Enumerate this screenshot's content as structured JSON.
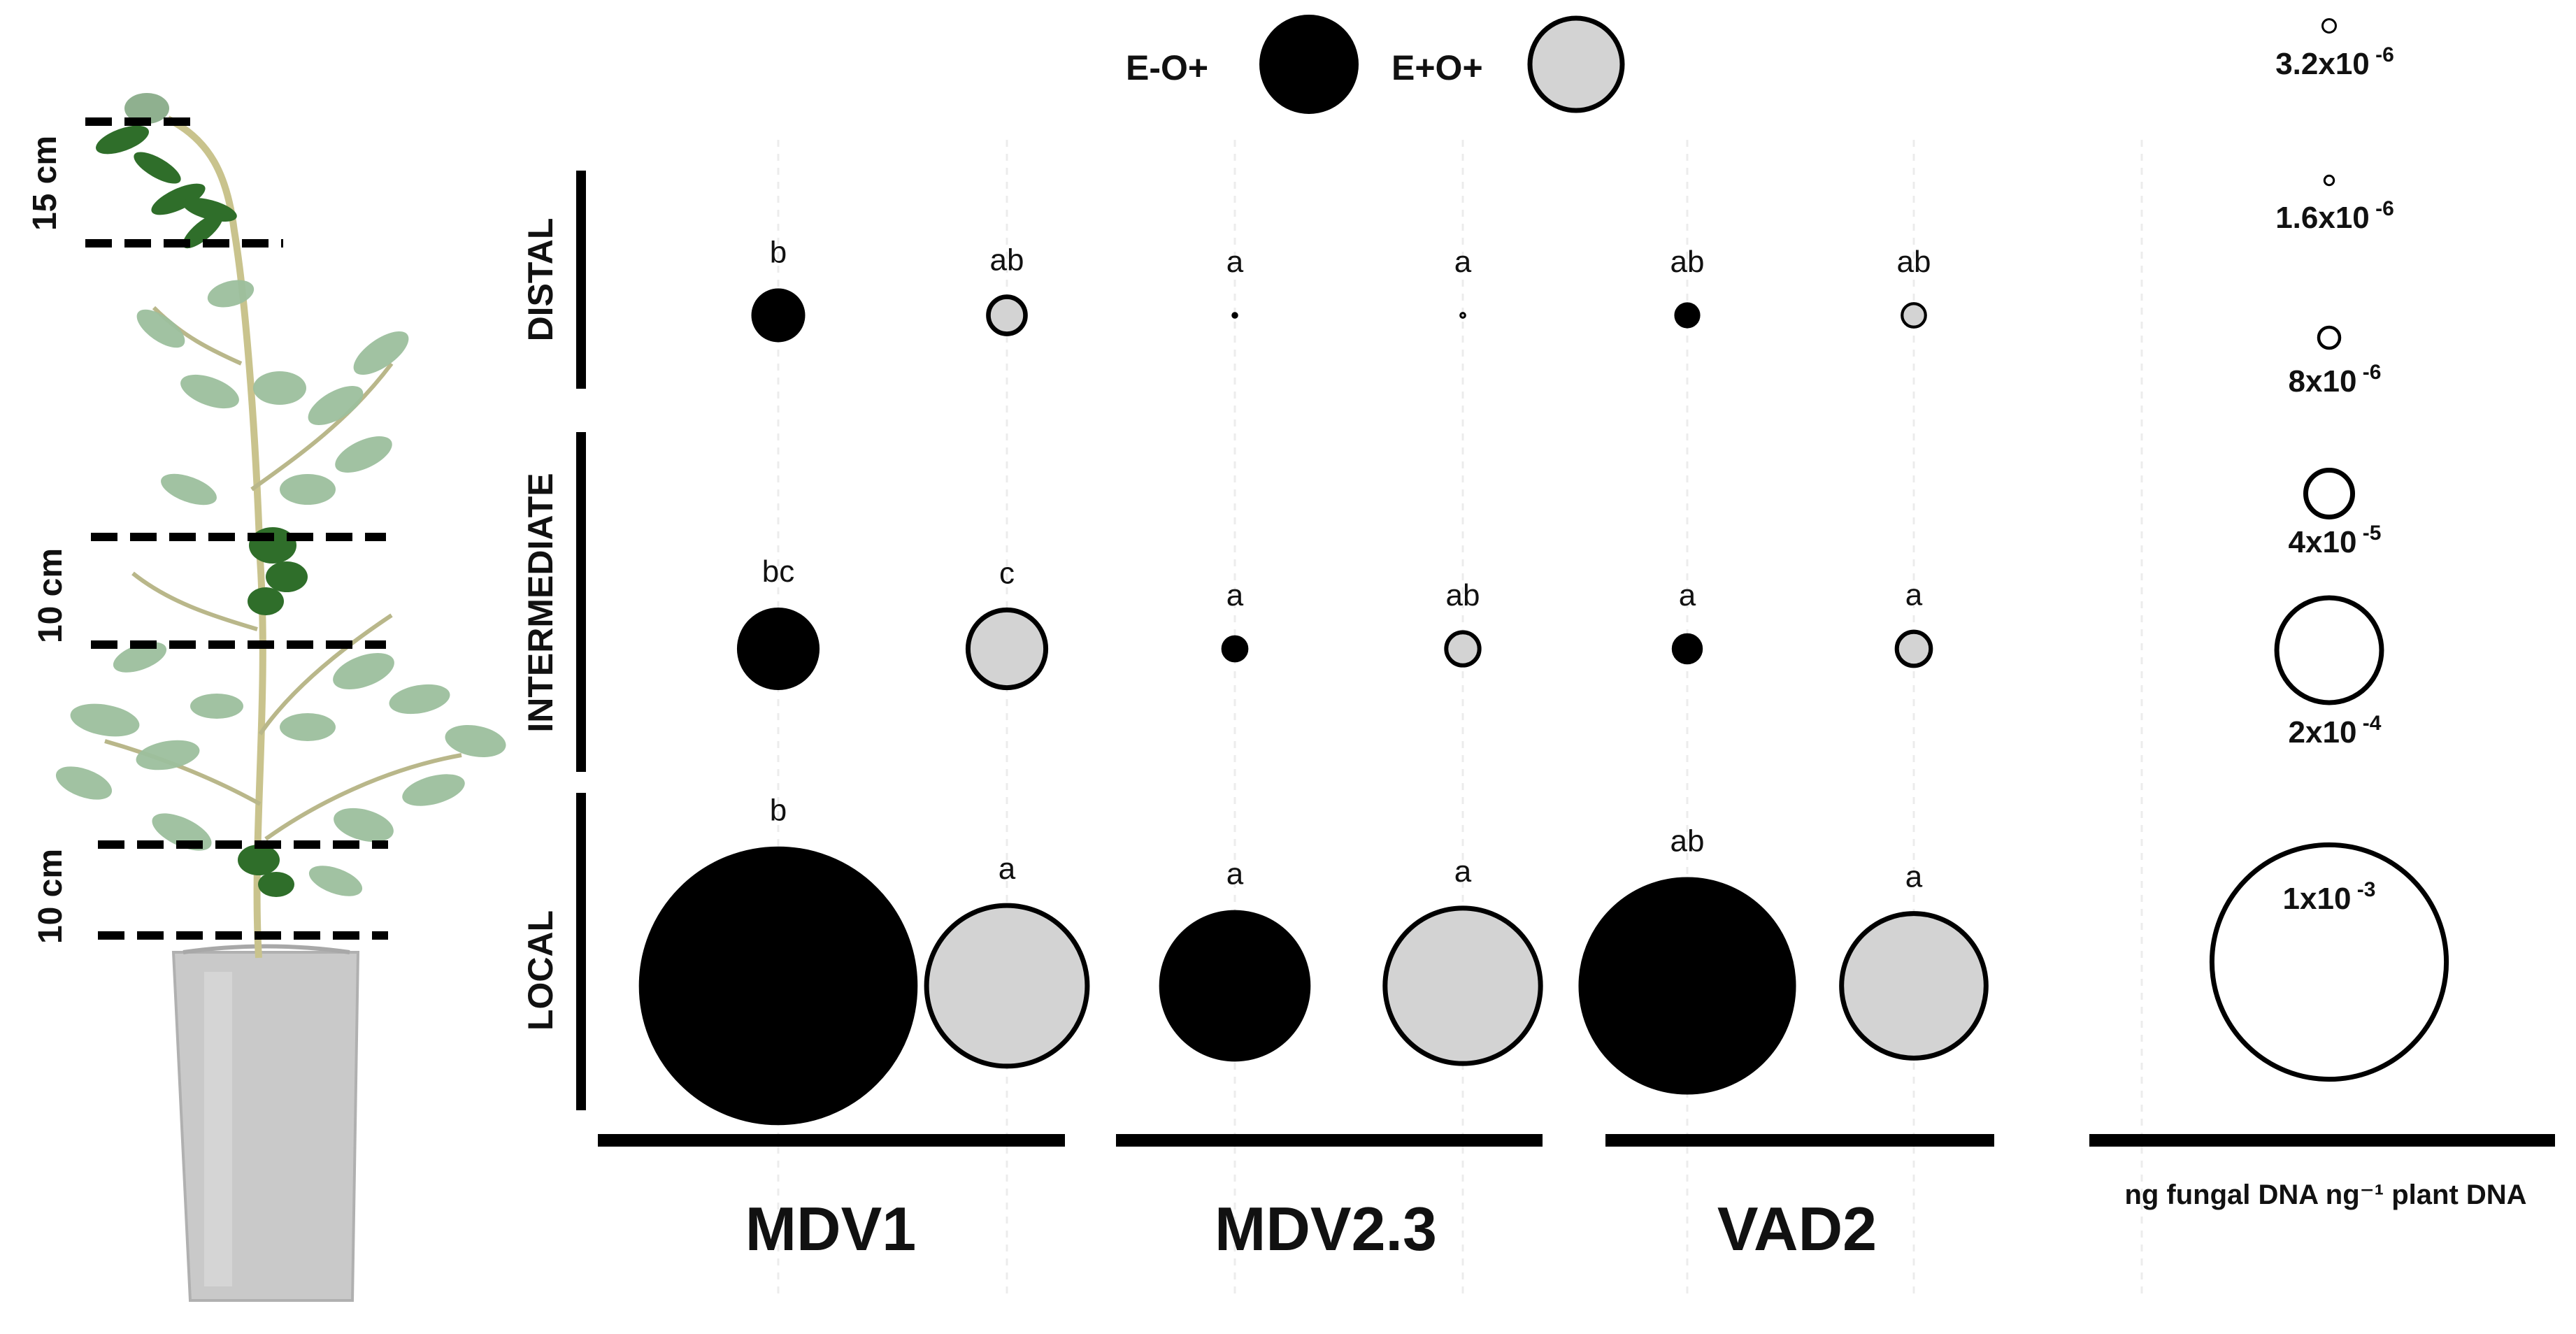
{
  "chart_data": {
    "type": "bubble",
    "legend": [
      {
        "label": "E-O+",
        "color": "#000000"
      },
      {
        "label": "E+O+",
        "color": "#d3d3d3"
      }
    ],
    "rows": [
      "DISTAL",
      "INTERMEDIATE",
      "LOCAL"
    ],
    "groups": [
      "MDV1",
      "MDV2.3",
      "VAD2"
    ],
    "treatments": [
      "E-O+",
      "E+O+"
    ],
    "series": [
      {
        "name": "E-O+",
        "color": "#000000",
        "values": [
          {
            "group": "MDV1",
            "row": "DISTAL",
            "value": 5e-05,
            "letter": "b"
          },
          {
            "group": "MDV1",
            "row": "INTERMEDIATE",
            "value": 0.00012,
            "letter": "bc"
          },
          {
            "group": "MDV1",
            "row": "LOCAL",
            "value": 0.0014,
            "letter": "b"
          },
          {
            "group": "MDV2.3",
            "row": "DISTAL",
            "value": 5e-07,
            "letter": "a"
          },
          {
            "group": "MDV2.3",
            "row": "INTERMEDIATE",
            "value": 1.2e-05,
            "letter": "a"
          },
          {
            "group": "MDV2.3",
            "row": "LOCAL",
            "value": 0.00041,
            "letter": "a"
          },
          {
            "group": "VAD2",
            "row": "DISTAL",
            "value": 1.1e-05,
            "letter": "ab"
          },
          {
            "group": "VAD2",
            "row": "INTERMEDIATE",
            "value": 1.6e-05,
            "letter": "a"
          },
          {
            "group": "VAD2",
            "row": "LOCAL",
            "value": 0.00085,
            "letter": "ab"
          }
        ]
      },
      {
        "name": "E+O+",
        "color": "#d3d3d3",
        "values": [
          {
            "group": "MDV1",
            "row": "DISTAL",
            "value": 2.5e-05,
            "letter": "ab"
          },
          {
            "group": "MDV1",
            "row": "INTERMEDIATE",
            "value": 0.00011,
            "letter": "c"
          },
          {
            "group": "MDV1",
            "row": "LOCAL",
            "value": 0.00047,
            "letter": "a"
          },
          {
            "group": "MDV2.3",
            "row": "DISTAL",
            "value": 4e-07,
            "letter": "a"
          },
          {
            "group": "MDV2.3",
            "row": "INTERMEDIATE",
            "value": 2e-05,
            "letter": "ab"
          },
          {
            "group": "MDV2.3",
            "row": "LOCAL",
            "value": 0.00044,
            "letter": "a"
          },
          {
            "group": "VAD2",
            "row": "DISTAL",
            "value": 1e-05,
            "letter": "ab"
          },
          {
            "group": "VAD2",
            "row": "INTERMEDIATE",
            "value": 2.1e-05,
            "letter": "a"
          },
          {
            "group": "VAD2",
            "row": "LOCAL",
            "value": 0.00038,
            "letter": "a"
          }
        ]
      }
    ],
    "size_scale": {
      "title": "ng fungal DNA ng⁻¹ plant DNA",
      "entries": [
        {
          "label_base": "3.2x10",
          "label_exp": "-6",
          "value": 3.2e-06
        },
        {
          "label_base": "1.6x10",
          "label_exp": "-6",
          "value": 1.6e-06
        },
        {
          "label_base": "8x10",
          "label_exp": "-6",
          "value": 8e-06
        },
        {
          "label_base": "4x10",
          "label_exp": "-5",
          "value": 4e-05
        },
        {
          "label_base": "2x10",
          "label_exp": "-4",
          "value": 0.0002
        },
        {
          "label_base": "1x10",
          "label_exp": "-3",
          "value": 0.001
        }
      ]
    },
    "plant_segments": [
      {
        "label": "15 cm"
      },
      {
        "label": "10 cm"
      },
      {
        "label": "10 cm"
      }
    ]
  }
}
